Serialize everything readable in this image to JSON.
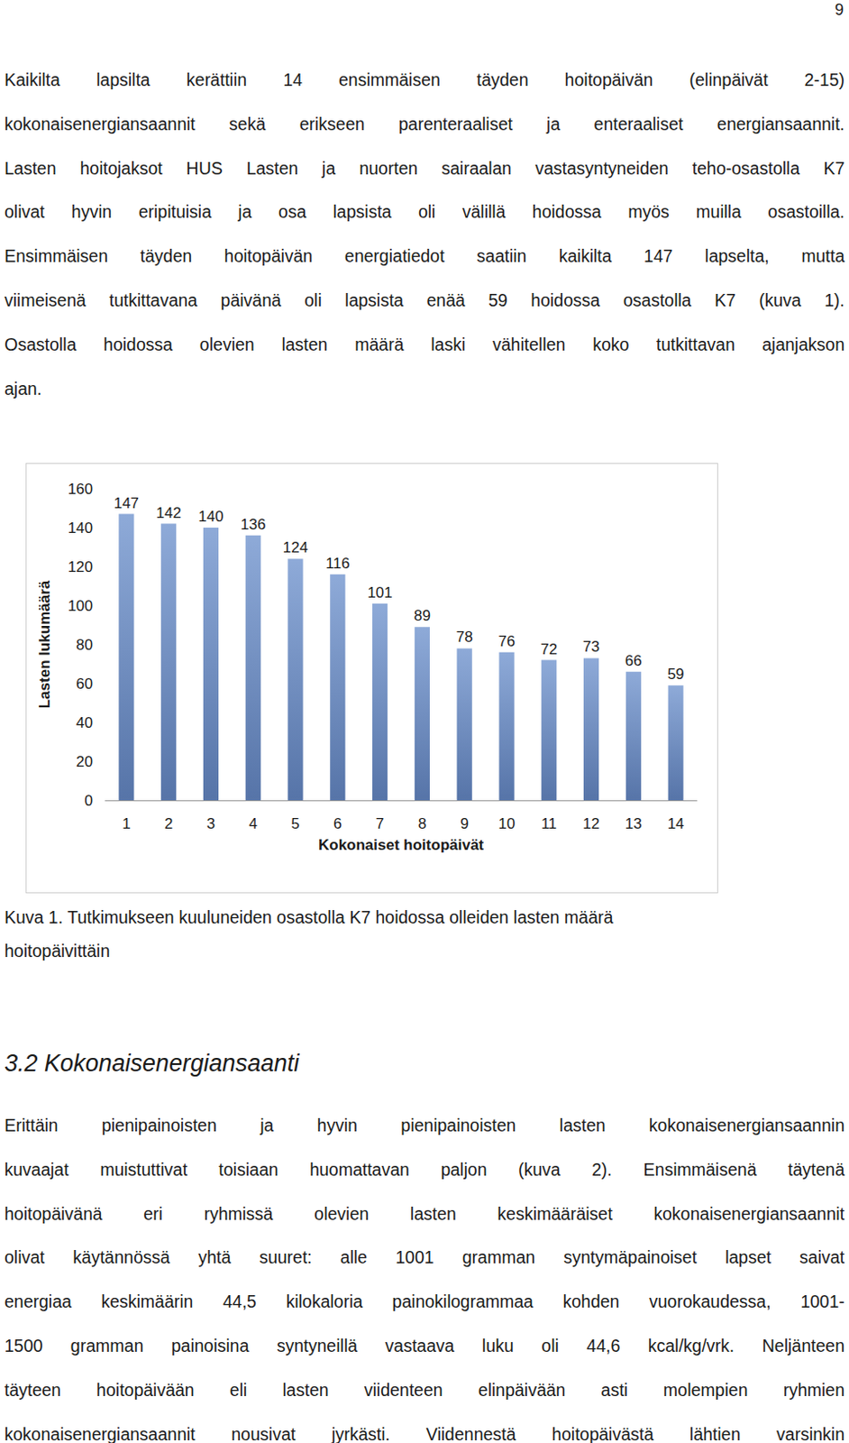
{
  "page_number": "9",
  "paragraph_before": [
    "Kaikilta lapsilta kerättiin 14 ensimmäisen täyden hoitopäivän (elinpäivät 2-15)",
    "kokonaisenergiansaannit sekä erikseen parenteraaliset ja enteraaliset energiansaannit.",
    "Lasten hoitojaksot HUS Lasten ja nuorten sairaalan vastasyntyneiden teho-osastolla K7",
    "olivat hyvin eripituisia ja osa lapsista oli välillä hoidossa myös muilla osastoilla.",
    "Ensimmäisen täyden hoitopäivän energiatiedot saatiin kaikilta 147 lapselta, mutta",
    "viimeisenä tutkittavana päivänä oli lapsista enää 59 hoidossa osastolla K7 (kuva 1).",
    "Osastolla hoidossa olevien lasten määrä laski vähitellen koko tutkittavan ajanjakson",
    "ajan."
  ],
  "chart_data": {
    "type": "bar",
    "x_label": "Kokonaiset hoitopäivät",
    "y_label": "Lasten lukumäärä",
    "categories": [
      "1",
      "2",
      "3",
      "4",
      "5",
      "6",
      "7",
      "8",
      "9",
      "10",
      "11",
      "12",
      "13",
      "14"
    ],
    "values": [
      147,
      142,
      140,
      136,
      124,
      116,
      101,
      89,
      78,
      76,
      72,
      73,
      66,
      59
    ],
    "color": "#8eaad8",
    "ylim": [
      0,
      160
    ],
    "yticks": [
      0,
      20,
      40,
      60,
      80,
      100,
      120,
      140,
      160
    ],
    "grid": false,
    "data_labels": true
  },
  "caption": [
    "Kuva 1. Tutkimukseen kuuluneiden osastolla K7 hoidossa olleiden lasten määrä",
    "hoitopäivittäin"
  ],
  "heading": "3.2 Kokonaisenergiansaanti",
  "paragraph_after": [
    "Erittäin pienipainoisten ja hyvin pienipainoisten lasten kokonaisenergiansaannin",
    "kuvaajat muistuttivat toisiaan huomattavan paljon (kuva 2). Ensimmäisenä täytenä",
    "hoitopäivänä eri ryhmissä olevien lasten keskimääräiset kokonaisenergiansaannit",
    "olivat käytännössä yhtä suuret: alle 1001 gramman syntymäpainoiset lapset saivat",
    "energiaa keskimäärin 44,5 kilokaloria painokilogrammaa kohden vuorokaudessa, 1001-",
    "1500 gramman painoisina syntyneillä vastaava luku oli 44,6 kcal/kg/vrk. Neljänteen",
    "täyteen hoitopäivään eli lasten viidenteen elinpäivään asti molempien ryhmien",
    "kokonaisenergiansaannit nousivat jyrkästi. Viidennestä hoitopäivästä lähtien varsinkin"
  ]
}
